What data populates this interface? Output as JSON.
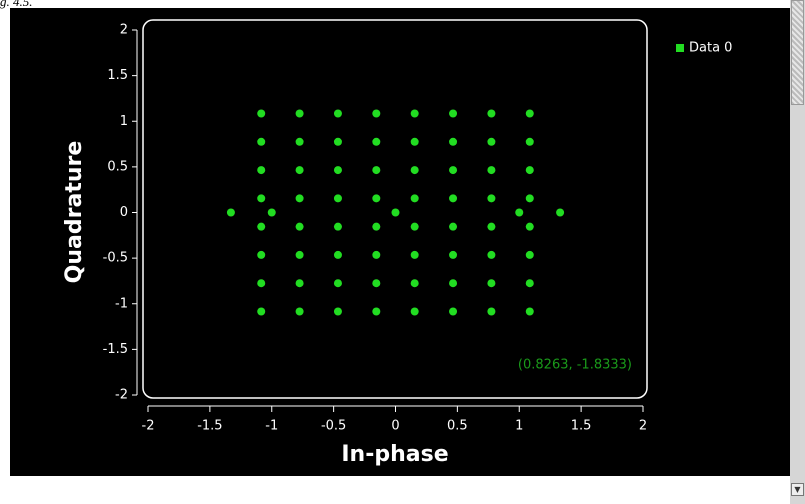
{
  "caption": "g. 4.5.",
  "chart_data": {
    "type": "scatter",
    "xlabel": "In-phase",
    "ylabel": "Quadrature",
    "annotation": "(0.8263, -1.8333)",
    "xlim": [
      -2,
      2
    ],
    "ylim": [
      -2,
      2
    ],
    "xticks": [
      -2,
      -1.5,
      -1,
      -0.5,
      0,
      0.5,
      1,
      1.5,
      2
    ],
    "yticks": [
      2,
      1.5,
      1,
      0.5,
      0,
      -0.5,
      -1,
      -1.5,
      -2
    ],
    "grid": false,
    "legend": "right",
    "series": [
      {
        "name": "Data 0",
        "color": "#22dd22",
        "x": [
          -1.085,
          -0.775,
          -0.465,
          -0.155,
          0.155,
          0.465,
          0.775,
          1.085,
          -1.085,
          -0.775,
          -0.465,
          -0.155,
          0.155,
          0.465,
          0.775,
          1.085,
          -1.085,
          -0.775,
          -0.465,
          -0.155,
          0.155,
          0.465,
          0.775,
          1.085,
          -1.085,
          -0.775,
          -0.465,
          -0.155,
          0.155,
          0.465,
          0.775,
          1.085,
          -1.085,
          -0.775,
          -0.465,
          -0.155,
          0.155,
          0.465,
          0.775,
          1.085,
          -1.085,
          -0.775,
          -0.465,
          -0.155,
          0.155,
          0.465,
          0.775,
          1.085,
          -1.085,
          -0.775,
          -0.465,
          -0.155,
          0.155,
          0.465,
          0.775,
          1.085,
          -1.085,
          -0.775,
          -0.465,
          -0.155,
          0.155,
          0.465,
          0.775,
          1.085,
          -1.33,
          -1,
          0,
          1,
          1.33
        ],
        "values": [
          1.085,
          1.085,
          1.085,
          1.085,
          1.085,
          1.085,
          1.085,
          1.085,
          0.775,
          0.775,
          0.775,
          0.775,
          0.775,
          0.775,
          0.775,
          0.775,
          0.465,
          0.465,
          0.465,
          0.465,
          0.465,
          0.465,
          0.465,
          0.465,
          0.155,
          0.155,
          0.155,
          0.155,
          0.155,
          0.155,
          0.155,
          0.155,
          -0.155,
          -0.155,
          -0.155,
          -0.155,
          -0.155,
          -0.155,
          -0.155,
          -0.155,
          -0.465,
          -0.465,
          -0.465,
          -0.465,
          -0.465,
          -0.465,
          -0.465,
          -0.465,
          -0.775,
          -0.775,
          -0.775,
          -0.775,
          -0.775,
          -0.775,
          -0.775,
          -0.775,
          -1.085,
          -1.085,
          -1.085,
          -1.085,
          -1.085,
          -1.085,
          -1.085,
          -1.085,
          0,
          0,
          0,
          0,
          0
        ]
      }
    ]
  }
}
